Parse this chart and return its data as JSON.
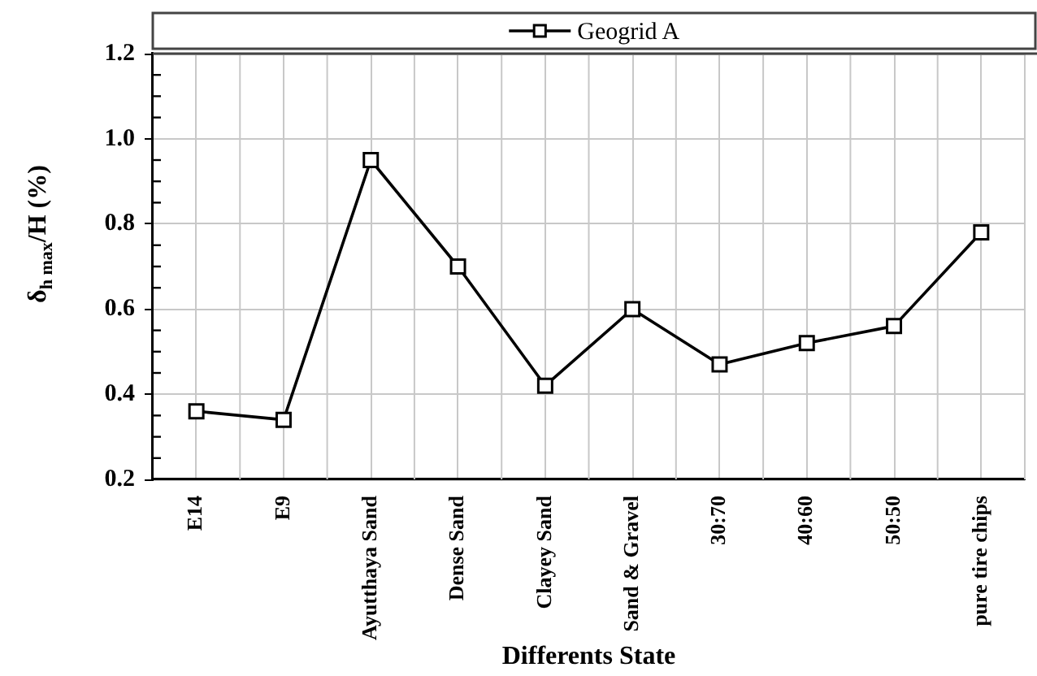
{
  "chart_data": {
    "type": "line",
    "xlabel": "Differents State",
    "ylabel": "δ$_{h max}$/H (%)",
    "categories": [
      "E14",
      "E9",
      "Ayutthaya Sand",
      "Dense Sand",
      "Clayey Sand",
      "Sand & Gravel",
      "30:70",
      "40:60",
      "50:50",
      "pure tire chips"
    ],
    "series": [
      {
        "name": "Geogrid A",
        "color": "#000000",
        "values": [
          0.36,
          0.34,
          0.95,
          0.7,
          0.42,
          0.6,
          0.47,
          0.52,
          0.56,
          0.78
        ]
      }
    ],
    "ylim": [
      0.2,
      1.2
    ],
    "yticks": [
      0.2,
      {
        "value": 0.25,
        "label": null
      },
      {
        "value": 0.3,
        "label": null
      },
      {
        "value": 0.35,
        "label": null
      },
      0.4,
      {
        "value": 0.45,
        "label": null
      },
      {
        "value": 0.5,
        "label": null
      },
      {
        "value": 0.55,
        "label": null
      },
      0.6,
      {
        "value": 0.65,
        "label": null
      },
      {
        "value": 0.7,
        "label": null
      },
      {
        "value": 0.75,
        "label": null
      },
      0.8,
      {
        "value": 0.85,
        "label": null
      },
      {
        "value": 0.9,
        "label": null
      },
      {
        "value": 0.95,
        "label": null
      },
      {
        "value": 1,
        "label": "1.0"
      },
      {
        "value": 1.05,
        "label": null
      },
      {
        "value": 1.1,
        "label": null
      },
      {
        "value": 1.15,
        "label": null
      },
      1.2
    ],
    "grid": true,
    "legend": "top",
    "marker": "square",
    "line_style": "solid"
  }
}
